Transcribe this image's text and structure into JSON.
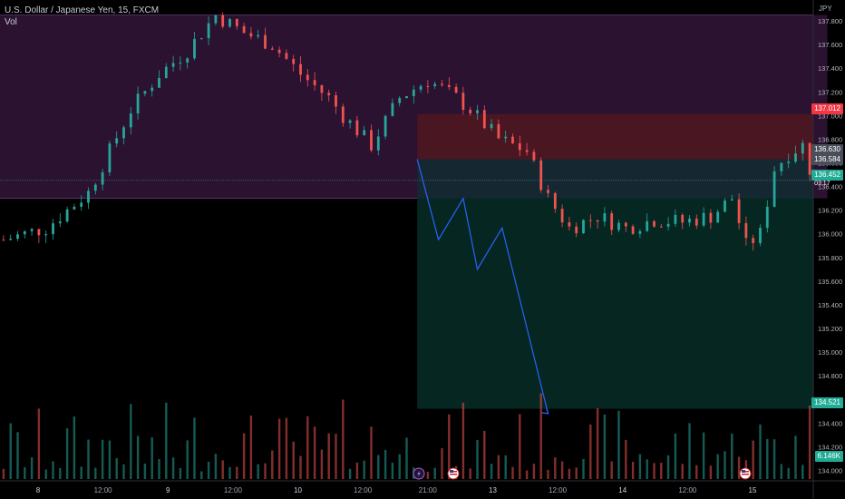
{
  "header": {
    "symbol_title": "U.S. Dollar / Japanese Yen, 15, FXCM",
    "volume_label": "Vol"
  },
  "price_axis": {
    "currency": "JPY",
    "ticks": [
      "137.800",
      "137.600",
      "137.400",
      "137.200",
      "137.000",
      "136.800",
      "136.600",
      "136.400",
      "136.200",
      "136.000",
      "135.800",
      "135.600",
      "135.400",
      "135.200",
      "135.000",
      "134.800",
      "134.600",
      "134.400",
      "134.200",
      "134.000"
    ]
  },
  "price_labels": {
    "target": "137.012",
    "entry": "136.630",
    "entry2": "136.584",
    "current": "136.452",
    "countdown": "03:17",
    "stop": "134.521",
    "volume": "6.146K"
  },
  "time_axis": {
    "labels": [
      {
        "text": "8",
        "bold": true
      },
      {
        "text": "12:00",
        "bold": false
      },
      {
        "text": "9",
        "bold": true
      },
      {
        "text": "12:00",
        "bold": false
      },
      {
        "text": "10",
        "bold": true
      },
      {
        "text": "12:00",
        "bold": false
      },
      {
        "text": "21:00",
        "bold": false
      },
      {
        "text": "13",
        "bold": true
      },
      {
        "text": "12:00",
        "bold": false
      },
      {
        "text": "14",
        "bold": true
      },
      {
        "text": "12:00",
        "bold": false
      },
      {
        "text": "15",
        "bold": true
      }
    ]
  },
  "event_icons": [
    "lightning-icon",
    "us-flag-icon",
    "us-flag-icon"
  ],
  "colors": {
    "background": "#000000",
    "up_candle": "#26a69a",
    "down_candle": "#ef5350",
    "zone_purple": "#2a1230",
    "target_zone": "#4a1622",
    "stop_zone": "#062621",
    "projection_line": "#2962ff"
  },
  "chart_data": {
    "type": "candlestick",
    "title": "U.S. Dollar / Japanese Yen, 15, FXCM",
    "y_range": [
      133.95,
      137.9
    ],
    "x_range": [
      0,
      230
    ],
    "candle_count": 115,
    "candle_keypoints": [
      [
        0,
        135.95
      ],
      [
        6,
        136.05
      ],
      [
        12,
        136.35
      ],
      [
        18,
        137.05
      ],
      [
        22,
        137.35
      ],
      [
        26,
        137.55
      ],
      [
        30,
        137.85
      ],
      [
        34,
        137.7
      ],
      [
        38,
        137.6
      ],
      [
        42,
        137.35
      ],
      [
        46,
        137.15
      ],
      [
        48,
        137.0
      ],
      [
        52,
        136.75
      ],
      [
        56,
        137.15
      ],
      [
        60,
        137.3
      ],
      [
        64,
        137.15
      ],
      [
        66,
        137.05
      ],
      [
        70,
        136.8
      ],
      [
        74,
        136.7
      ],
      [
        77,
        136.3
      ],
      [
        80,
        136.05
      ],
      [
        84,
        136.15
      ],
      [
        88,
        136.05
      ],
      [
        92,
        136.12
      ],
      [
        96,
        136.1
      ],
      [
        100,
        136.15
      ],
      [
        103,
        136.3
      ],
      [
        105,
        135.9
      ],
      [
        107,
        136.0
      ],
      [
        109,
        136.55
      ],
      [
        111,
        136.68
      ],
      [
        113,
        136.75
      ],
      [
        114,
        136.55
      ],
      [
        115,
        136.45
      ]
    ],
    "current_price": 136.452,
    "position": {
      "type": "short",
      "entry": 136.63,
      "entry_secondary": 136.584,
      "target": 137.012,
      "stop": 134.521
    },
    "projection_path": [
      [
        118,
        136.63
      ],
      [
        124,
        135.95
      ],
      [
        131,
        136.3
      ],
      [
        135,
        135.7
      ],
      [
        142,
        136.05
      ],
      [
        155,
        134.48
      ]
    ],
    "zones": [
      {
        "from": 136.3,
        "to": 137.85,
        "color": "purple"
      }
    ],
    "volume_peak": "6.146K"
  }
}
